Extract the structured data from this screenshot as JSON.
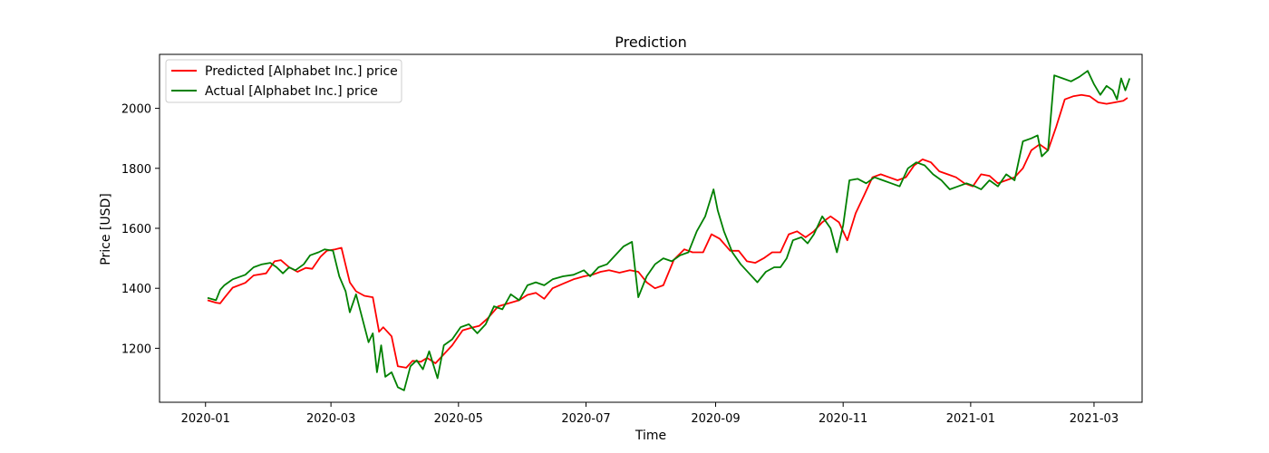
{
  "chart_data": {
    "type": "line",
    "title": "Prediction",
    "xlabel": "Time",
    "ylabel": "Price [USD]",
    "x_range": [
      "2019-12-10",
      "2021-03-24"
    ],
    "ylim": [
      1020,
      2180
    ],
    "grid": false,
    "legend_position": "top-left",
    "x_ticks": [
      "2020-01",
      "2020-03",
      "2020-05",
      "2020-07",
      "2020-09",
      "2020-11",
      "2021-01",
      "2021-03"
    ],
    "y_ticks": [
      1200,
      1400,
      1600,
      1800,
      2000
    ],
    "series": [
      {
        "name": "Predicted [Alphabet Inc.] price",
        "color": "#ff0000",
        "points": [
          [
            "2020-01-02",
            1360
          ],
          [
            "2020-01-06",
            1352
          ],
          [
            "2020-01-08",
            1350
          ],
          [
            "2020-01-10",
            1368
          ],
          [
            "2020-01-14",
            1402
          ],
          [
            "2020-01-20",
            1418
          ],
          [
            "2020-01-24",
            1443
          ],
          [
            "2020-01-30",
            1450
          ],
          [
            "2020-02-03",
            1490
          ],
          [
            "2020-02-06",
            1494
          ],
          [
            "2020-02-10",
            1470
          ],
          [
            "2020-02-14",
            1455
          ],
          [
            "2020-02-18",
            1468
          ],
          [
            "2020-02-21",
            1465
          ],
          [
            "2020-02-25",
            1505
          ],
          [
            "2020-02-28",
            1525
          ],
          [
            "2020-03-03",
            1530
          ],
          [
            "2020-03-06",
            1535
          ],
          [
            "2020-03-10",
            1420
          ],
          [
            "2020-03-13",
            1390
          ],
          [
            "2020-03-17",
            1375
          ],
          [
            "2020-03-21",
            1370
          ],
          [
            "2020-03-24",
            1255
          ],
          [
            "2020-03-26",
            1270
          ],
          [
            "2020-03-30",
            1240
          ],
          [
            "2020-04-02",
            1140
          ],
          [
            "2020-04-06",
            1135
          ],
          [
            "2020-04-09",
            1158
          ],
          [
            "2020-04-13",
            1155
          ],
          [
            "2020-04-16",
            1168
          ],
          [
            "2020-04-20",
            1150
          ],
          [
            "2020-04-24",
            1180
          ],
          [
            "2020-04-28",
            1210
          ],
          [
            "2020-05-03",
            1260
          ],
          [
            "2020-05-07",
            1268
          ],
          [
            "2020-05-11",
            1275
          ],
          [
            "2020-05-15",
            1300
          ],
          [
            "2020-05-20",
            1340
          ],
          [
            "2020-05-25",
            1350
          ],
          [
            "2020-05-30",
            1360
          ],
          [
            "2020-06-03",
            1378
          ],
          [
            "2020-06-07",
            1385
          ],
          [
            "2020-06-11",
            1365
          ],
          [
            "2020-06-15",
            1400
          ],
          [
            "2020-06-20",
            1415
          ],
          [
            "2020-06-25",
            1430
          ],
          [
            "2020-06-30",
            1440
          ],
          [
            "2020-07-04",
            1445
          ],
          [
            "2020-07-08",
            1455
          ],
          [
            "2020-07-12",
            1460
          ],
          [
            "2020-07-17",
            1452
          ],
          [
            "2020-07-22",
            1460
          ],
          [
            "2020-07-26",
            1455
          ],
          [
            "2020-07-30",
            1420
          ],
          [
            "2020-08-03",
            1400
          ],
          [
            "2020-08-07",
            1410
          ],
          [
            "2020-08-12",
            1495
          ],
          [
            "2020-08-17",
            1530
          ],
          [
            "2020-08-21",
            1520
          ],
          [
            "2020-08-26",
            1520
          ],
          [
            "2020-08-30",
            1580
          ],
          [
            "2020-09-03",
            1565
          ],
          [
            "2020-09-08",
            1525
          ],
          [
            "2020-09-12",
            1525
          ],
          [
            "2020-09-16",
            1490
          ],
          [
            "2020-09-20",
            1485
          ],
          [
            "2020-09-24",
            1500
          ],
          [
            "2020-09-28",
            1520
          ],
          [
            "2020-10-02",
            1520
          ],
          [
            "2020-10-06",
            1580
          ],
          [
            "2020-10-10",
            1590
          ],
          [
            "2020-10-14",
            1570
          ],
          [
            "2020-10-18",
            1590
          ],
          [
            "2020-10-22",
            1620
          ],
          [
            "2020-10-26",
            1640
          ],
          [
            "2020-10-30",
            1620
          ],
          [
            "2020-11-03",
            1560
          ],
          [
            "2020-11-07",
            1650
          ],
          [
            "2020-11-11",
            1710
          ],
          [
            "2020-11-15",
            1770
          ],
          [
            "2020-11-19",
            1780
          ],
          [
            "2020-11-23",
            1770
          ],
          [
            "2020-11-27",
            1760
          ],
          [
            "2020-12-01",
            1770
          ],
          [
            "2020-12-05",
            1810
          ],
          [
            "2020-12-09",
            1830
          ],
          [
            "2020-12-13",
            1820
          ],
          [
            "2020-12-17",
            1790
          ],
          [
            "2020-12-21",
            1780
          ],
          [
            "2020-12-25",
            1770
          ],
          [
            "2020-12-29",
            1750
          ],
          [
            "2021-01-02",
            1740
          ],
          [
            "2021-01-06",
            1780
          ],
          [
            "2021-01-10",
            1775
          ],
          [
            "2021-01-14",
            1750
          ],
          [
            "2021-01-18",
            1760
          ],
          [
            "2021-01-22",
            1770
          ],
          [
            "2021-01-26",
            1800
          ],
          [
            "2021-01-30",
            1860
          ],
          [
            "2021-02-03",
            1880
          ],
          [
            "2021-02-07",
            1860
          ],
          [
            "2021-02-11",
            1940
          ],
          [
            "2021-02-15",
            2030
          ],
          [
            "2021-02-19",
            2040
          ],
          [
            "2021-02-23",
            2045
          ],
          [
            "2021-02-27",
            2040
          ],
          [
            "2021-03-03",
            2020
          ],
          [
            "2021-03-07",
            2015
          ],
          [
            "2021-03-11",
            2020
          ],
          [
            "2021-03-15",
            2025
          ],
          [
            "2021-03-17",
            2035
          ]
        ]
      },
      {
        "name": "Actual [Alphabet Inc.] price",
        "color": "#008000",
        "points": [
          [
            "2020-01-02",
            1368
          ],
          [
            "2020-01-06",
            1360
          ],
          [
            "2020-01-08",
            1395
          ],
          [
            "2020-01-10",
            1410
          ],
          [
            "2020-01-14",
            1430
          ],
          [
            "2020-01-20",
            1445
          ],
          [
            "2020-01-24",
            1470
          ],
          [
            "2020-01-28",
            1480
          ],
          [
            "2020-02-01",
            1485
          ],
          [
            "2020-02-04",
            1470
          ],
          [
            "2020-02-07",
            1450
          ],
          [
            "2020-02-10",
            1470
          ],
          [
            "2020-02-13",
            1460
          ],
          [
            "2020-02-17",
            1480
          ],
          [
            "2020-02-20",
            1510
          ],
          [
            "2020-02-24",
            1520
          ],
          [
            "2020-02-27",
            1530
          ],
          [
            "2020-03-02",
            1525
          ],
          [
            "2020-03-05",
            1440
          ],
          [
            "2020-03-08",
            1390
          ],
          [
            "2020-03-10",
            1320
          ],
          [
            "2020-03-13",
            1380
          ],
          [
            "2020-03-16",
            1300
          ],
          [
            "2020-03-19",
            1220
          ],
          [
            "2020-03-21",
            1250
          ],
          [
            "2020-03-23",
            1120
          ],
          [
            "2020-03-25",
            1210
          ],
          [
            "2020-03-27",
            1105
          ],
          [
            "2020-03-30",
            1120
          ],
          [
            "2020-04-02",
            1070
          ],
          [
            "2020-04-05",
            1060
          ],
          [
            "2020-04-08",
            1140
          ],
          [
            "2020-04-11",
            1160
          ],
          [
            "2020-04-14",
            1130
          ],
          [
            "2020-04-17",
            1190
          ],
          [
            "2020-04-21",
            1100
          ],
          [
            "2020-04-24",
            1210
          ],
          [
            "2020-04-28",
            1230
          ],
          [
            "2020-05-02",
            1270
          ],
          [
            "2020-05-06",
            1280
          ],
          [
            "2020-05-10",
            1250
          ],
          [
            "2020-05-14",
            1280
          ],
          [
            "2020-05-18",
            1340
          ],
          [
            "2020-05-22",
            1330
          ],
          [
            "2020-05-26",
            1380
          ],
          [
            "2020-05-30",
            1360
          ],
          [
            "2020-06-03",
            1410
          ],
          [
            "2020-06-07",
            1420
          ],
          [
            "2020-06-11",
            1410
          ],
          [
            "2020-06-15",
            1430
          ],
          [
            "2020-06-20",
            1440
          ],
          [
            "2020-06-25",
            1445
          ],
          [
            "2020-06-30",
            1460
          ],
          [
            "2020-07-03",
            1440
          ],
          [
            "2020-07-07",
            1470
          ],
          [
            "2020-07-11",
            1480
          ],
          [
            "2020-07-15",
            1510
          ],
          [
            "2020-07-19",
            1540
          ],
          [
            "2020-07-23",
            1555
          ],
          [
            "2020-07-26",
            1370
          ],
          [
            "2020-07-30",
            1440
          ],
          [
            "2020-08-03",
            1480
          ],
          [
            "2020-08-07",
            1500
          ],
          [
            "2020-08-11",
            1490
          ],
          [
            "2020-08-15",
            1510
          ],
          [
            "2020-08-19",
            1520
          ],
          [
            "2020-08-23",
            1590
          ],
          [
            "2020-08-27",
            1640
          ],
          [
            "2020-08-31",
            1730
          ],
          [
            "2020-09-02",
            1660
          ],
          [
            "2020-09-05",
            1590
          ],
          [
            "2020-09-09",
            1520
          ],
          [
            "2020-09-13",
            1480
          ],
          [
            "2020-09-17",
            1450
          ],
          [
            "2020-09-21",
            1420
          ],
          [
            "2020-09-25",
            1455
          ],
          [
            "2020-09-29",
            1470
          ],
          [
            "2020-10-02",
            1470
          ],
          [
            "2020-10-05",
            1500
          ],
          [
            "2020-10-08",
            1560
          ],
          [
            "2020-10-12",
            1570
          ],
          [
            "2020-10-15",
            1550
          ],
          [
            "2020-10-18",
            1580
          ],
          [
            "2020-10-22",
            1640
          ],
          [
            "2020-10-26",
            1600
          ],
          [
            "2020-10-29",
            1520
          ],
          [
            "2020-11-01",
            1610
          ],
          [
            "2020-11-04",
            1760
          ],
          [
            "2020-11-08",
            1765
          ],
          [
            "2020-11-12",
            1750
          ],
          [
            "2020-11-16",
            1770
          ],
          [
            "2020-11-20",
            1760
          ],
          [
            "2020-11-24",
            1750
          ],
          [
            "2020-11-28",
            1740
          ],
          [
            "2020-12-02",
            1800
          ],
          [
            "2020-12-06",
            1820
          ],
          [
            "2020-12-10",
            1810
          ],
          [
            "2020-12-14",
            1780
          ],
          [
            "2020-12-18",
            1760
          ],
          [
            "2020-12-22",
            1730
          ],
          [
            "2020-12-26",
            1740
          ],
          [
            "2020-12-30",
            1750
          ],
          [
            "2021-01-03",
            1740
          ],
          [
            "2021-01-06",
            1730
          ],
          [
            "2021-01-10",
            1760
          ],
          [
            "2021-01-14",
            1740
          ],
          [
            "2021-01-18",
            1780
          ],
          [
            "2021-01-22",
            1760
          ],
          [
            "2021-01-26",
            1890
          ],
          [
            "2021-01-30",
            1900
          ],
          [
            "2021-02-02",
            1910
          ],
          [
            "2021-02-04",
            1840
          ],
          [
            "2021-02-07",
            1860
          ],
          [
            "2021-02-10",
            2110
          ],
          [
            "2021-02-14",
            2100
          ],
          [
            "2021-02-18",
            2090
          ],
          [
            "2021-02-22",
            2105
          ],
          [
            "2021-02-26",
            2125
          ],
          [
            "2021-03-01",
            2080
          ],
          [
            "2021-03-04",
            2045
          ],
          [
            "2021-03-07",
            2075
          ],
          [
            "2021-03-10",
            2060
          ],
          [
            "2021-03-12",
            2030
          ],
          [
            "2021-03-14",
            2100
          ],
          [
            "2021-03-16",
            2060
          ],
          [
            "2021-03-17",
            2080
          ],
          [
            "2021-03-18",
            2100
          ]
        ]
      }
    ]
  }
}
